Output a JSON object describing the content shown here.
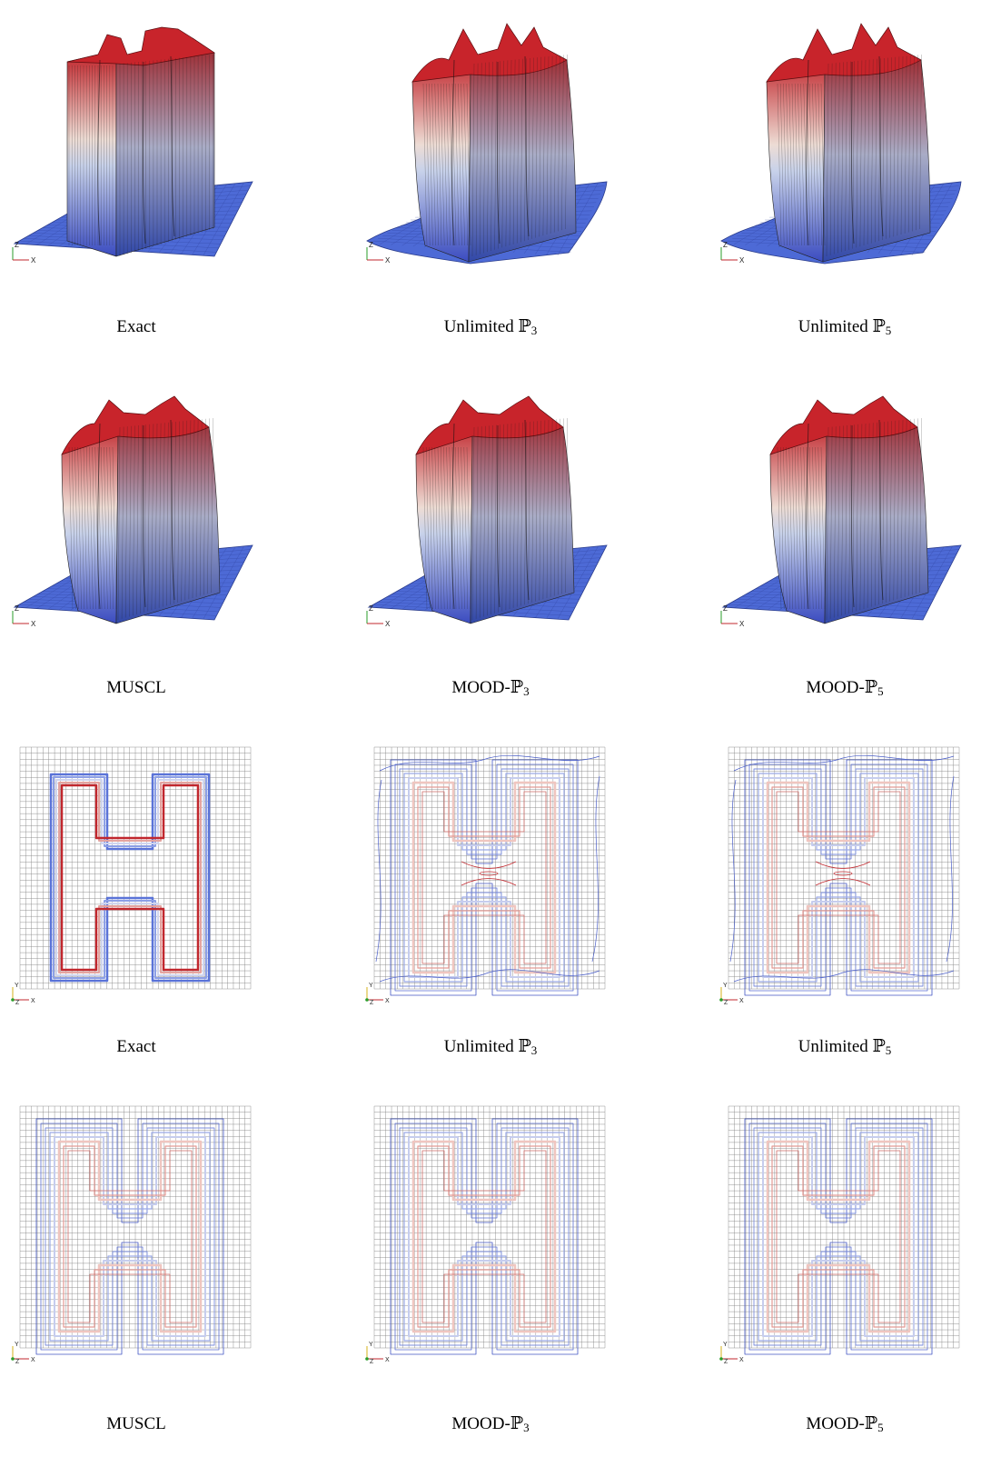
{
  "rows": [
    {
      "kind": "surface",
      "labels": [
        {
          "base": "Exact",
          "sub": ""
        },
        {
          "base": "Unlimited ℙ",
          "sub": "3"
        },
        {
          "base": "Unlimited ℙ",
          "sub": "5"
        }
      ]
    },
    {
      "kind": "surface",
      "labels": [
        {
          "base": "MUSCL",
          "sub": ""
        },
        {
          "base": "MOOD-ℙ",
          "sub": "3"
        },
        {
          "base": "MOOD-ℙ",
          "sub": "5"
        }
      ]
    },
    {
      "kind": "contour",
      "labels": [
        {
          "base": "Exact",
          "sub": ""
        },
        {
          "base": "Unlimited ℙ",
          "sub": "3"
        },
        {
          "base": "Unlimited ℙ",
          "sub": "5"
        }
      ]
    },
    {
      "kind": "contour",
      "labels": [
        {
          "base": "MUSCL",
          "sub": ""
        },
        {
          "base": "MOOD-ℙ",
          "sub": "3"
        },
        {
          "base": "MOOD-ℙ",
          "sub": "5"
        }
      ]
    }
  ],
  "axes": {
    "surface": {
      "x": "X",
      "z": "Z"
    },
    "contour": {
      "x": "X",
      "y": "Y",
      "z": "Z"
    }
  },
  "colors": {
    "high": "#c1272d",
    "mid": "#f0f0f0",
    "low": "#3b4cc0",
    "grid": "#888888"
  }
}
